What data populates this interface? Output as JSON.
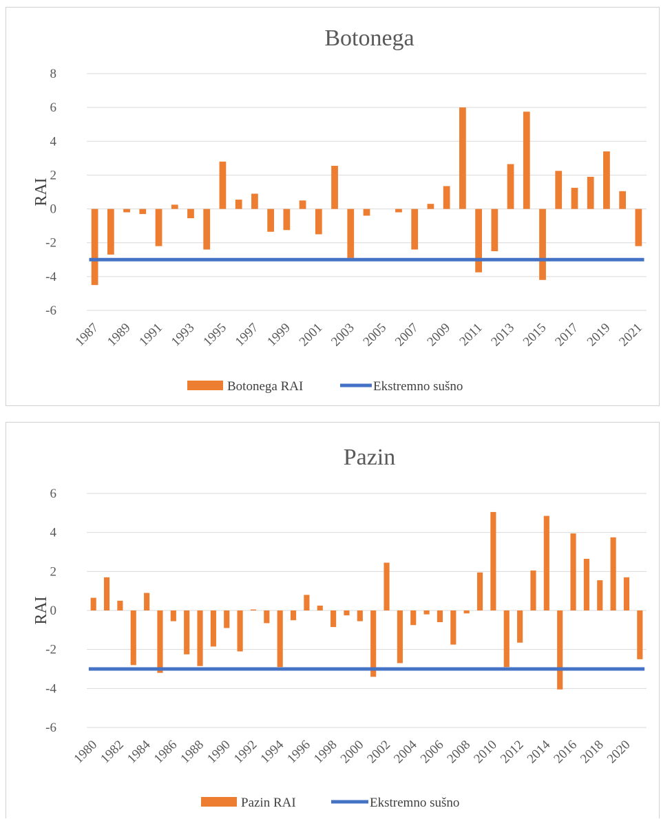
{
  "colors": {
    "bar": "#ED7D31",
    "threshold": "#4472C4",
    "grid": "#D9D9D9",
    "text": "#595959"
  },
  "chart_data": [
    {
      "type": "bar",
      "title": "Botonega",
      "ylabel": "RAI",
      "xlabel": "",
      "ylim": [
        -6,
        8
      ],
      "yticks": [
        -6,
        -4,
        -2,
        0,
        2,
        4,
        6,
        8
      ],
      "grid": true,
      "legend_position": "bottom",
      "x": [
        1987,
        1988,
        1989,
        1990,
        1991,
        1992,
        1993,
        1994,
        1995,
        1996,
        1997,
        1998,
        1999,
        2000,
        2001,
        2002,
        2003,
        2004,
        2005,
        2006,
        2007,
        2008,
        2009,
        2010,
        2011,
        2012,
        2013,
        2014,
        2015,
        2016,
        2017,
        2018,
        2019,
        2020,
        2021
      ],
      "xtick_labels": [
        "1987",
        "1989",
        "1991",
        "1993",
        "1995",
        "1997",
        "1999",
        "2001",
        "2003",
        "2005",
        "2007",
        "2009",
        "2011",
        "2013",
        "2015",
        "2017",
        "2019",
        "2021"
      ],
      "series": [
        {
          "name": "Botonega RAI",
          "kind": "bar",
          "values": [
            -4.5,
            -2.7,
            -0.2,
            -0.3,
            -2.2,
            0.25,
            -0.55,
            -2.4,
            2.8,
            0.55,
            0.9,
            -1.35,
            -1.25,
            0.5,
            -1.5,
            2.55,
            -2.9,
            -0.4,
            0,
            -0.2,
            -2.4,
            0.3,
            1.35,
            6.0,
            -3.75,
            -2.5,
            2.65,
            5.75,
            -4.2,
            2.25,
            1.25,
            1.9,
            3.4,
            1.05,
            -2.2
          ]
        },
        {
          "name": "Ekstremno sušno",
          "kind": "line",
          "value": -3
        }
      ]
    },
    {
      "type": "bar",
      "title": "Pazin",
      "ylabel": "RAI",
      "xlabel": "",
      "ylim": [
        -6,
        6
      ],
      "yticks": [
        -6,
        -4,
        -2,
        0,
        2,
        4,
        6
      ],
      "grid": true,
      "legend_position": "bottom",
      "x": [
        1980,
        1981,
        1982,
        1983,
        1984,
        1985,
        1986,
        1987,
        1988,
        1989,
        1990,
        1991,
        1992,
        1993,
        1994,
        1995,
        1996,
        1997,
        1998,
        1999,
        2000,
        2001,
        2002,
        2003,
        2004,
        2005,
        2006,
        2007,
        2008,
        2009,
        2010,
        2011,
        2012,
        2013,
        2014,
        2015,
        2016,
        2017,
        2018,
        2019,
        2020,
        2021
      ],
      "xtick_labels": [
        "1980",
        "1982",
        "1984",
        "1986",
        "1988",
        "1990",
        "1992",
        "1994",
        "1996",
        "1998",
        "2000",
        "2002",
        "2004",
        "2006",
        "2008",
        "2010",
        "2012",
        "2014",
        "2016",
        "2018",
        "2020"
      ],
      "series": [
        {
          "name": "Pazin RAI",
          "kind": "bar",
          "values": [
            0.65,
            1.7,
            0.5,
            -2.8,
            0.9,
            -3.2,
            -0.55,
            -2.25,
            -2.85,
            -1.85,
            -0.9,
            -2.1,
            0.05,
            -0.65,
            -2.9,
            -0.5,
            0.8,
            0.25,
            -0.85,
            -0.25,
            -0.55,
            -3.4,
            2.45,
            -2.7,
            -0.75,
            -0.2,
            -0.6,
            -1.75,
            -0.15,
            1.95,
            5.05,
            -2.9,
            -1.65,
            2.05,
            4.85,
            -4.05,
            3.95,
            2.65,
            1.55,
            3.75,
            1.7,
            -2.5
          ]
        },
        {
          "name": "Ekstremno sušno",
          "kind": "line",
          "value": -3
        }
      ]
    }
  ]
}
